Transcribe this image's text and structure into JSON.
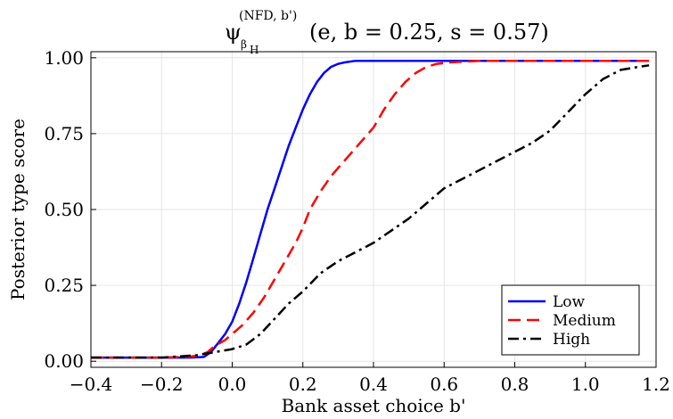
{
  "chart_data": {
    "type": "line",
    "title": {
      "symbol": "ψ",
      "superscript": "(NFD, b')",
      "subscript": "β",
      "sub_subscript": "H",
      "args": "(e, b = 0.25, s = 0.57)"
    },
    "xlabel": "Bank asset choice b'",
    "ylabel": "Posterior type score",
    "xlim": [
      -0.4,
      1.2
    ],
    "ylim": [
      -0.02,
      1.02
    ],
    "xticks": [
      -0.4,
      -0.2,
      0.0,
      0.2,
      0.4,
      0.6,
      0.8,
      1.0,
      1.2
    ],
    "xtick_labels": [
      "−0.4",
      "−0.2",
      "0.0",
      "0.2",
      "0.4",
      "0.6",
      "0.8",
      "1.0",
      "1.2"
    ],
    "yticks": [
      0.0,
      0.25,
      0.5,
      0.75,
      1.0
    ],
    "ytick_labels": [
      "0.00",
      "0.25",
      "0.50",
      "0.75",
      "1.00"
    ],
    "grid": true,
    "legend_position": "bottom-right",
    "series": [
      {
        "name": "Low",
        "color": "#0000ff",
        "dash": "solid",
        "x": [
          -0.4,
          -0.3,
          -0.2,
          -0.12,
          -0.08,
          -0.06,
          -0.04,
          -0.02,
          0.0,
          0.02,
          0.04,
          0.06,
          0.08,
          0.1,
          0.12,
          0.14,
          0.16,
          0.18,
          0.2,
          0.22,
          0.24,
          0.26,
          0.28,
          0.3,
          0.32,
          0.35,
          0.4,
          0.5,
          0.6,
          0.8,
          1.0,
          1.18
        ],
        "y": [
          0.012,
          0.012,
          0.012,
          0.012,
          0.014,
          0.03,
          0.06,
          0.09,
          0.13,
          0.19,
          0.26,
          0.34,
          0.42,
          0.5,
          0.57,
          0.64,
          0.71,
          0.77,
          0.83,
          0.88,
          0.92,
          0.95,
          0.97,
          0.98,
          0.985,
          0.99,
          0.99,
          0.99,
          0.99,
          0.99,
          0.99,
          0.99
        ]
      },
      {
        "name": "Medium",
        "color": "#ff0000",
        "dash": "dash",
        "x": [
          -0.4,
          -0.3,
          -0.2,
          -0.12,
          -0.09,
          -0.07,
          -0.05,
          -0.02,
          0.0,
          0.03,
          0.06,
          0.09,
          0.12,
          0.15,
          0.18,
          0.2,
          0.22,
          0.25,
          0.28,
          0.31,
          0.34,
          0.37,
          0.4,
          0.43,
          0.46,
          0.49,
          0.52,
          0.55,
          0.58,
          0.62,
          0.7,
          0.8,
          1.0,
          1.18
        ],
        "y": [
          0.012,
          0.012,
          0.012,
          0.015,
          0.02,
          0.03,
          0.05,
          0.07,
          0.09,
          0.12,
          0.16,
          0.21,
          0.27,
          0.33,
          0.39,
          0.44,
          0.5,
          0.56,
          0.61,
          0.65,
          0.69,
          0.73,
          0.77,
          0.83,
          0.88,
          0.92,
          0.95,
          0.97,
          0.98,
          0.985,
          0.99,
          0.99,
          0.99,
          0.99
        ]
      },
      {
        "name": "High",
        "color": "#000000",
        "dash": "dashdot",
        "x": [
          -0.4,
          -0.3,
          -0.2,
          -0.1,
          -0.05,
          0.0,
          0.04,
          0.08,
          0.12,
          0.16,
          0.2,
          0.25,
          0.3,
          0.35,
          0.4,
          0.45,
          0.5,
          0.55,
          0.6,
          0.65,
          0.7,
          0.75,
          0.8,
          0.85,
          0.9,
          0.95,
          1.0,
          1.05,
          1.1,
          1.15,
          1.18
        ],
        "y": [
          0.012,
          0.012,
          0.012,
          0.02,
          0.03,
          0.04,
          0.055,
          0.09,
          0.14,
          0.19,
          0.23,
          0.29,
          0.33,
          0.36,
          0.39,
          0.43,
          0.47,
          0.52,
          0.57,
          0.6,
          0.63,
          0.66,
          0.69,
          0.72,
          0.76,
          0.82,
          0.88,
          0.93,
          0.96,
          0.97,
          0.975
        ]
      }
    ]
  }
}
